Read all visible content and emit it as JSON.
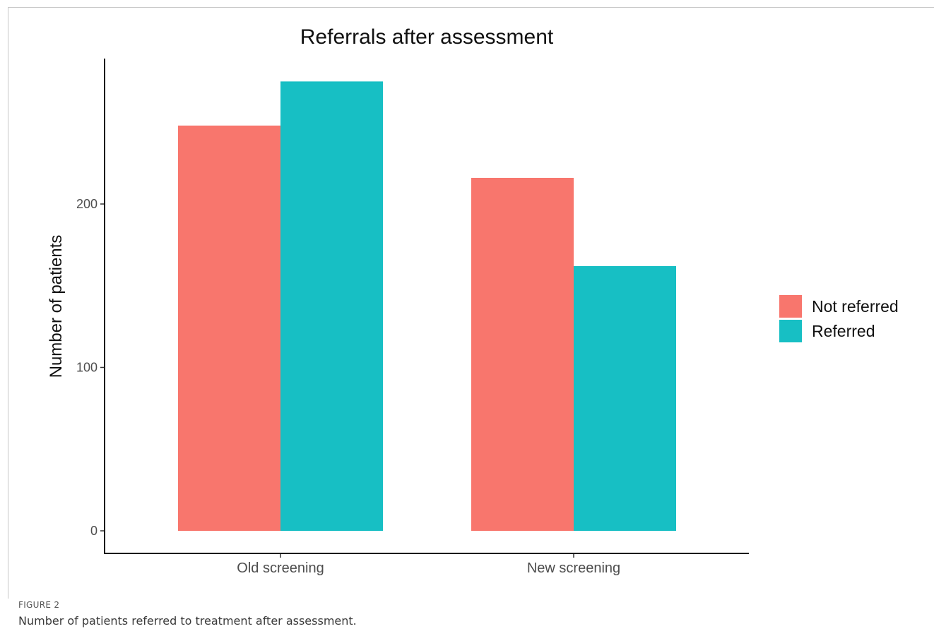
{
  "chart_data": {
    "type": "bar",
    "title": "Referrals after assessment",
    "xlabel": "",
    "ylabel": "Number of patients",
    "categories": [
      "Old screening",
      "New screening"
    ],
    "series": [
      {
        "name": "Not referred",
        "color": "#F8766D",
        "values": [
          248,
          216
        ]
      },
      {
        "name": "Referred",
        "color": "#17BFC4",
        "values": [
          275,
          162
        ]
      }
    ],
    "ylim": [
      0,
      287
    ],
    "yticks": [
      0,
      100,
      200
    ],
    "grid": false,
    "legend_position": "right"
  },
  "caption": {
    "label": "FIGURE 2",
    "text": "Number of patients referred to treatment after assessment."
  }
}
